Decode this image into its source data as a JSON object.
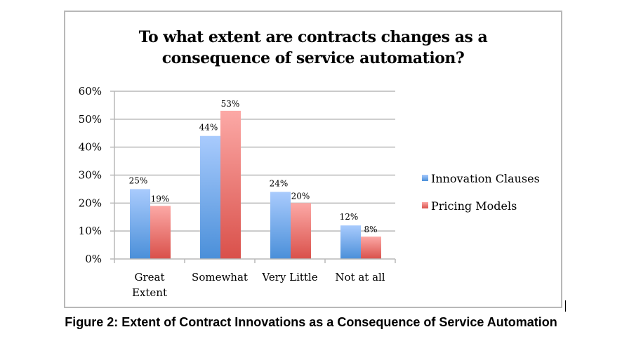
{
  "chart_data": {
    "type": "bar",
    "title": "To what extent are contracts changes as a consequence of service automation?",
    "title_lines": [
      "To what extent are contracts changes as a",
      "consequence of service automation?"
    ],
    "categories": [
      "Great Extent",
      "Somewhat",
      "Very Little",
      "Not at all"
    ],
    "category_lines": [
      [
        "Great",
        "Extent"
      ],
      [
        "Somewhat"
      ],
      [
        "Very Little"
      ],
      [
        "Not at all"
      ]
    ],
    "series": [
      {
        "name": "Innovation Clauses",
        "values": [
          25,
          44,
          24,
          12
        ],
        "labels": [
          "25%",
          "44%",
          "24%",
          "12%"
        ],
        "color_top": "#a9cbfd",
        "color_bottom": "#4a8fd9"
      },
      {
        "name": "Pricing Models",
        "values": [
          19,
          53,
          20,
          8
        ],
        "labels": [
          "19%",
          "53%",
          "20%",
          "8%"
        ],
        "color_top": "#fca9a6",
        "color_bottom": "#d9504a"
      }
    ],
    "xlabel": "",
    "ylabel": "",
    "ylim": [
      0,
      60
    ],
    "yticks": [
      0,
      10,
      20,
      30,
      40,
      50,
      60
    ],
    "ytick_labels": [
      "0%",
      "10%",
      "20%",
      "30%",
      "40%",
      "50%",
      "60%"
    ],
    "grid": true,
    "legend_position": "right"
  },
  "caption": "Figure 2: Extent of Contract Innovations as a Consequence of Service Automation",
  "colors": {
    "gridline": "#b8b8b8",
    "frame": "#b8b8b8"
  }
}
